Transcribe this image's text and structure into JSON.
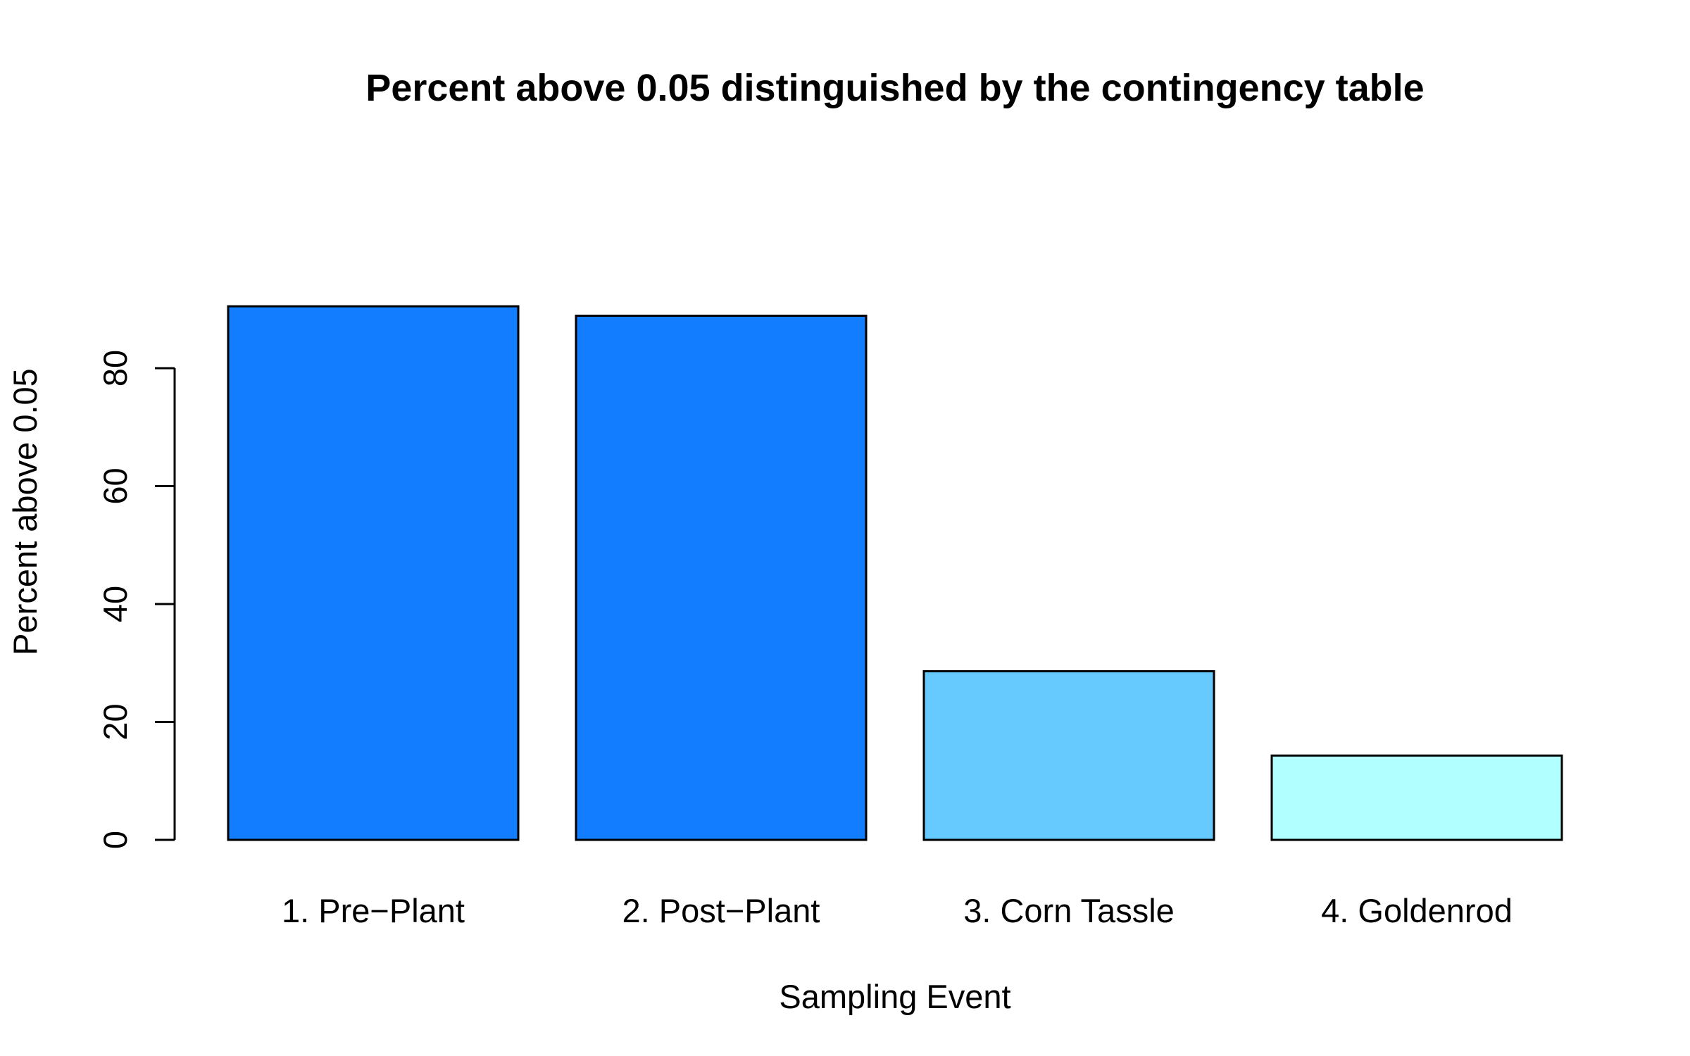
{
  "chart_data": {
    "type": "bar",
    "title": "Percent above 0.05 distinguished by the contingency table",
    "xlabel": "Sampling Event",
    "ylabel": "Percent above 0.05",
    "categories": [
      "1. Pre−Plant",
      "2. Post−Plant",
      "3. Corn Tassle",
      "4. Goldenrod"
    ],
    "values": [
      90.5,
      88.9,
      28.6,
      14.3
    ],
    "colors": [
      "#127DFF",
      "#127DFF",
      "#66CAFF",
      "#B2FFFF"
    ],
    "yticks": [
      0,
      20,
      40,
      60,
      80
    ],
    "ytick_labels": [
      "0",
      "20",
      "40",
      "60",
      "80"
    ],
    "ylim": [
      0,
      90.5
    ],
    "grid": false,
    "legend": "none"
  }
}
